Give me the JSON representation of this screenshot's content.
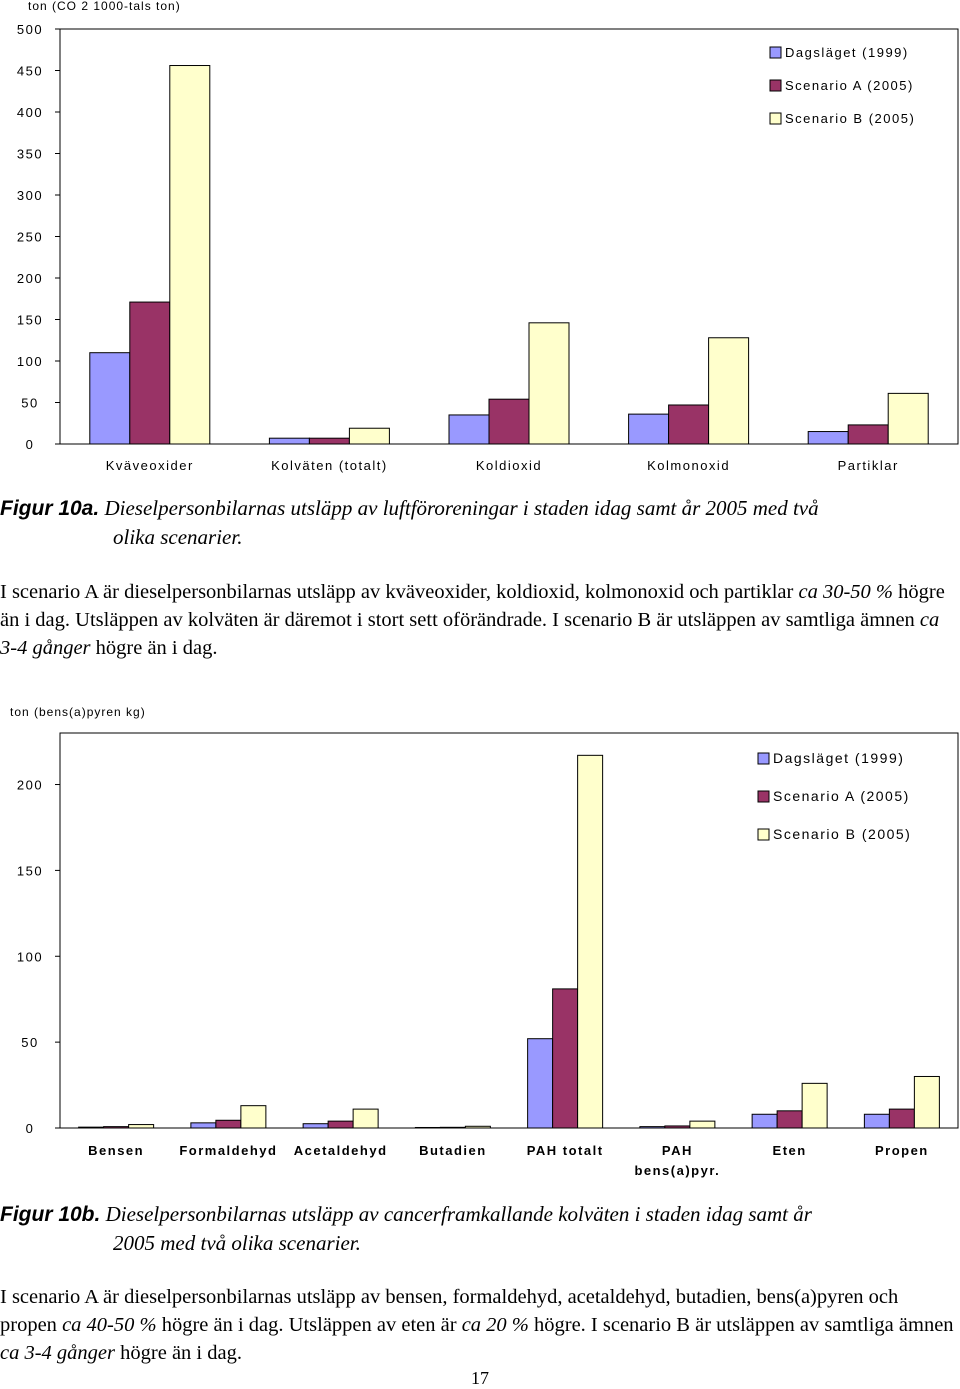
{
  "chart_data": [
    {
      "type": "bar",
      "title": "",
      "ylabel": "ton (CO 2 1000-tals ton)",
      "xlabel": "",
      "ylim": [
        0,
        500
      ],
      "yticks": [
        "0",
        "50",
        "100",
        "150",
        "200",
        "250",
        "300",
        "350",
        "400",
        "450",
        "500"
      ],
      "grid": false,
      "legend_position": "top-right",
      "categories": [
        "Kväveoxider",
        "Kolväten (totalt)",
        "Koldioxid",
        "Kolmonoxid",
        "Partiklar"
      ],
      "series": [
        {
          "name": "Dagsläget (1999)",
          "color": "#9999ff",
          "values": [
            110,
            7,
            35,
            36,
            15
          ]
        },
        {
          "name": "Scenario A (2005)",
          "color": "#993366",
          "values": [
            171,
            7,
            54,
            47,
            23
          ]
        },
        {
          "name": "Scenario B (2005)",
          "color": "#ffffcc",
          "values": [
            456,
            19,
            146,
            128,
            61
          ]
        }
      ]
    },
    {
      "type": "bar",
      "title": "",
      "ylabel": "ton (bens(a)pyren kg)",
      "xlabel": "",
      "ylim": [
        0,
        230
      ],
      "yticks": [
        "0",
        "50",
        "100",
        "150",
        "200"
      ],
      "grid": false,
      "legend_position": "top-right",
      "categories": [
        "Bensen",
        "Formaldehyd",
        "Acetaldehyd",
        "Butadien",
        "PAH totalt",
        "PAH bens(a)pyr.",
        "Eten",
        "Propen"
      ],
      "category_lines": [
        [
          "Bensen"
        ],
        [
          "Formaldehyd"
        ],
        [
          "Acetaldehyd"
        ],
        [
          "Butadien"
        ],
        [
          "PAH totalt"
        ],
        [
          "PAH",
          "bens(a)pyr."
        ],
        [
          "Eten"
        ],
        [
          "Propen"
        ]
      ],
      "series": [
        {
          "name": "Dagsläget (1999)",
          "color": "#9999ff",
          "values": [
            0.5,
            3,
            2.5,
            0.3,
            52,
            0.8,
            8,
            8
          ]
        },
        {
          "name": "Scenario A (2005)",
          "color": "#993366",
          "values": [
            0.8,
            4.5,
            4,
            0.4,
            81,
            1.2,
            10,
            11
          ]
        },
        {
          "name": "Scenario B (2005)",
          "color": "#ffffcc",
          "values": [
            2,
            13,
            11,
            1,
            217,
            4,
            26,
            30
          ]
        }
      ]
    }
  ],
  "caption_a": {
    "label": "Figur 10a.",
    "text_line1": " Dieselpersonbilarnas utsläpp av luftföroreningar i staden idag samt år 2005 med två",
    "text_line2": "olika scenarier."
  },
  "para_a": {
    "s1": "I scenario A är dieselpersonbilarnas utsläpp av kväveoxider, koldioxid, kolmonoxid och partiklar ",
    "s1_italic": "ca 30-50 %",
    "s2": " högre än i dag. Utsläppen av kolväten är däremot i stort sett oförändrade. I scenario B är utsläppen av samtliga ämnen ",
    "s2_italic": "ca 3-4 gånger",
    "s3": " högre än i dag."
  },
  "caption_b": {
    "label": "Figur 10b.",
    "text_line1": " Dieselpersonbilarnas utsläpp av cancerframkallande kolväten i staden idag samt år",
    "text_line2": "2005 med två olika scenarier."
  },
  "para_b": {
    "s1": "I scenario A är dieselpersonbilarnas utsläpp av bensen, formaldehyd, acetaldehyd, butadien, bens(a)pyren och propen ",
    "s1_italic": "ca 40-50 %",
    "s2": " högre än i dag. Utsläppen av eten är ",
    "s2_italic": "ca 20 %",
    "s3": " högre. I scenario B är utsläppen av samtliga ämnen ",
    "s3_italic": "ca 3-4 gånger",
    "s4": " högre än i dag."
  },
  "page_number": "17"
}
